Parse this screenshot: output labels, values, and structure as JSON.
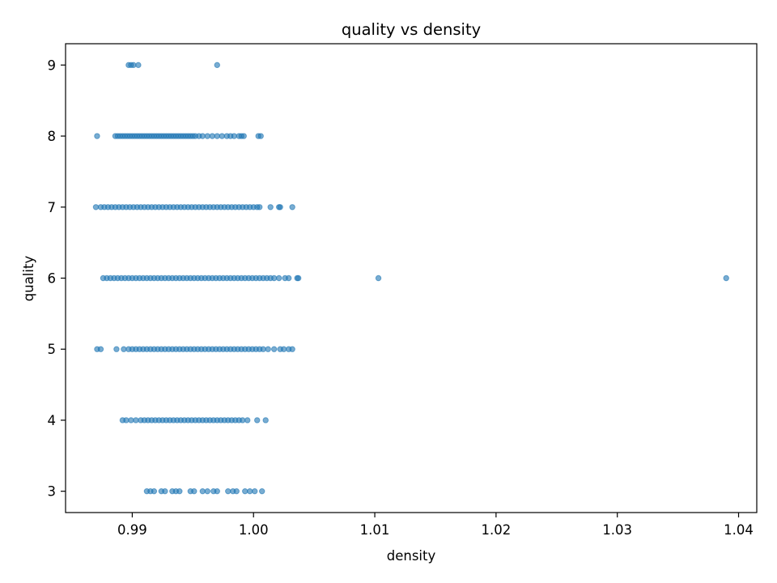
{
  "chart_data": {
    "type": "scatter",
    "title": "quality vs density",
    "xlabel": "density",
    "ylabel": "quality",
    "xlim": [
      0.9845,
      1.0415
    ],
    "ylim": [
      2.7,
      9.3
    ],
    "xticks": [
      0.99,
      1.0,
      1.01,
      1.02,
      1.03,
      1.04
    ],
    "xtick_labels": [
      "0.99",
      "1.00",
      "1.01",
      "1.02",
      "1.03",
      "1.04"
    ],
    "yticks": [
      3,
      4,
      5,
      6,
      7,
      8,
      9
    ],
    "ytick_labels": [
      "3",
      "4",
      "5",
      "6",
      "7",
      "8",
      "9"
    ],
    "grid": false,
    "legend": "none",
    "marker_color": "#1f77b4",
    "marker_alpha": 0.6,
    "series": [
      {
        "points": [
          [
            0.9897,
            9
          ],
          [
            0.9899,
            9
          ],
          [
            0.9901,
            9
          ],
          [
            0.9905,
            9
          ],
          [
            0.997,
            9
          ],
          [
            0.9871,
            8
          ],
          [
            0.9886,
            8
          ],
          [
            0.9888,
            8
          ],
          [
            0.989,
            8
          ],
          [
            0.9892,
            8
          ],
          [
            0.9894,
            8
          ],
          [
            0.9896,
            8
          ],
          [
            0.9898,
            8
          ],
          [
            0.99,
            8
          ],
          [
            0.9902,
            8
          ],
          [
            0.9904,
            8
          ],
          [
            0.9906,
            8
          ],
          [
            0.9908,
            8
          ],
          [
            0.991,
            8
          ],
          [
            0.9912,
            8
          ],
          [
            0.9914,
            8
          ],
          [
            0.9916,
            8
          ],
          [
            0.9918,
            8
          ],
          [
            0.992,
            8
          ],
          [
            0.9922,
            8
          ],
          [
            0.9924,
            8
          ],
          [
            0.9926,
            8
          ],
          [
            0.9928,
            8
          ],
          [
            0.993,
            8
          ],
          [
            0.9932,
            8
          ],
          [
            0.9934,
            8
          ],
          [
            0.9936,
            8
          ],
          [
            0.9938,
            8
          ],
          [
            0.994,
            8
          ],
          [
            0.9942,
            8
          ],
          [
            0.9944,
            8
          ],
          [
            0.9946,
            8
          ],
          [
            0.9948,
            8
          ],
          [
            0.995,
            8
          ],
          [
            0.9952,
            8
          ],
          [
            0.9955,
            8
          ],
          [
            0.9958,
            8
          ],
          [
            0.9962,
            8
          ],
          [
            0.9966,
            8
          ],
          [
            0.997,
            8
          ],
          [
            0.9974,
            8
          ],
          [
            0.9978,
            8
          ],
          [
            0.9981,
            8
          ],
          [
            0.9984,
            8
          ],
          [
            0.9988,
            8
          ],
          [
            0.999,
            8
          ],
          [
            0.9992,
            8
          ],
          [
            1.0004,
            8
          ],
          [
            1.0006,
            8
          ],
          [
            0.987,
            7
          ],
          [
            0.9874,
            7
          ],
          [
            0.9877,
            7
          ],
          [
            0.988,
            7
          ],
          [
            0.9883,
            7
          ],
          [
            0.9886,
            7
          ],
          [
            0.9889,
            7
          ],
          [
            0.9892,
            7
          ],
          [
            0.9895,
            7
          ],
          [
            0.9898,
            7
          ],
          [
            0.9901,
            7
          ],
          [
            0.9904,
            7
          ],
          [
            0.9907,
            7
          ],
          [
            0.991,
            7
          ],
          [
            0.9913,
            7
          ],
          [
            0.9916,
            7
          ],
          [
            0.9919,
            7
          ],
          [
            0.9922,
            7
          ],
          [
            0.9925,
            7
          ],
          [
            0.9928,
            7
          ],
          [
            0.9931,
            7
          ],
          [
            0.9934,
            7
          ],
          [
            0.9937,
            7
          ],
          [
            0.994,
            7
          ],
          [
            0.9943,
            7
          ],
          [
            0.9946,
            7
          ],
          [
            0.9949,
            7
          ],
          [
            0.9952,
            7
          ],
          [
            0.9955,
            7
          ],
          [
            0.9958,
            7
          ],
          [
            0.9961,
            7
          ],
          [
            0.9964,
            7
          ],
          [
            0.9967,
            7
          ],
          [
            0.997,
            7
          ],
          [
            0.9973,
            7
          ],
          [
            0.9976,
            7
          ],
          [
            0.9979,
            7
          ],
          [
            0.9982,
            7
          ],
          [
            0.9985,
            7
          ],
          [
            0.9988,
            7
          ],
          [
            0.9991,
            7
          ],
          [
            0.9994,
            7
          ],
          [
            0.9997,
            7
          ],
          [
            1.0,
            7
          ],
          [
            1.0003,
            7
          ],
          [
            1.0005,
            7
          ],
          [
            1.0014,
            7
          ],
          [
            1.0021,
            7
          ],
          [
            1.0022,
            7
          ],
          [
            1.0032,
            7
          ],
          [
            0.9876,
            6
          ],
          [
            0.9879,
            6
          ],
          [
            0.9882,
            6
          ],
          [
            0.9885,
            6
          ],
          [
            0.9888,
            6
          ],
          [
            0.9891,
            6
          ],
          [
            0.9894,
            6
          ],
          [
            0.9897,
            6
          ],
          [
            0.99,
            6
          ],
          [
            0.9903,
            6
          ],
          [
            0.9906,
            6
          ],
          [
            0.9909,
            6
          ],
          [
            0.9912,
            6
          ],
          [
            0.9915,
            6
          ],
          [
            0.9918,
            6
          ],
          [
            0.9921,
            6
          ],
          [
            0.9924,
            6
          ],
          [
            0.9927,
            6
          ],
          [
            0.993,
            6
          ],
          [
            0.9933,
            6
          ],
          [
            0.9936,
            6
          ],
          [
            0.9939,
            6
          ],
          [
            0.9942,
            6
          ],
          [
            0.9945,
            6
          ],
          [
            0.9948,
            6
          ],
          [
            0.9951,
            6
          ],
          [
            0.9954,
            6
          ],
          [
            0.9957,
            6
          ],
          [
            0.996,
            6
          ],
          [
            0.9963,
            6
          ],
          [
            0.9966,
            6
          ],
          [
            0.9969,
            6
          ],
          [
            0.9972,
            6
          ],
          [
            0.9975,
            6
          ],
          [
            0.9978,
            6
          ],
          [
            0.9981,
            6
          ],
          [
            0.9984,
            6
          ],
          [
            0.9987,
            6
          ],
          [
            0.999,
            6
          ],
          [
            0.9993,
            6
          ],
          [
            0.9996,
            6
          ],
          [
            0.9999,
            6
          ],
          [
            1.0002,
            6
          ],
          [
            1.0005,
            6
          ],
          [
            1.0008,
            6
          ],
          [
            1.0011,
            6
          ],
          [
            1.0014,
            6
          ],
          [
            1.0017,
            6
          ],
          [
            1.0021,
            6
          ],
          [
            1.0026,
            6
          ],
          [
            1.0029,
            6
          ],
          [
            1.0036,
            6
          ],
          [
            1.0037,
            6
          ],
          [
            1.0103,
            6
          ],
          [
            1.03898,
            6
          ],
          [
            0.9871,
            5
          ],
          [
            0.9874,
            5
          ],
          [
            0.9887,
            5
          ],
          [
            0.9893,
            5
          ],
          [
            0.9897,
            5
          ],
          [
            0.99,
            5
          ],
          [
            0.9903,
            5
          ],
          [
            0.9906,
            5
          ],
          [
            0.9909,
            5
          ],
          [
            0.9912,
            5
          ],
          [
            0.9915,
            5
          ],
          [
            0.9918,
            5
          ],
          [
            0.9921,
            5
          ],
          [
            0.9924,
            5
          ],
          [
            0.9927,
            5
          ],
          [
            0.993,
            5
          ],
          [
            0.9933,
            5
          ],
          [
            0.9936,
            5
          ],
          [
            0.9939,
            5
          ],
          [
            0.9942,
            5
          ],
          [
            0.9945,
            5
          ],
          [
            0.9948,
            5
          ],
          [
            0.9951,
            5
          ],
          [
            0.9954,
            5
          ],
          [
            0.9957,
            5
          ],
          [
            0.996,
            5
          ],
          [
            0.9963,
            5
          ],
          [
            0.9966,
            5
          ],
          [
            0.9969,
            5
          ],
          [
            0.9972,
            5
          ],
          [
            0.9975,
            5
          ],
          [
            0.9978,
            5
          ],
          [
            0.9981,
            5
          ],
          [
            0.9984,
            5
          ],
          [
            0.9987,
            5
          ],
          [
            0.999,
            5
          ],
          [
            0.9993,
            5
          ],
          [
            0.9996,
            5
          ],
          [
            0.9999,
            5
          ],
          [
            1.0002,
            5
          ],
          [
            1.0005,
            5
          ],
          [
            1.0008,
            5
          ],
          [
            1.0012,
            5
          ],
          [
            1.0017,
            5
          ],
          [
            1.0022,
            5
          ],
          [
            1.0025,
            5
          ],
          [
            1.0029,
            5
          ],
          [
            1.0032,
            5
          ],
          [
            0.9892,
            4
          ],
          [
            0.9895,
            4
          ],
          [
            0.9899,
            4
          ],
          [
            0.9903,
            4
          ],
          [
            0.9907,
            4
          ],
          [
            0.991,
            4
          ],
          [
            0.9913,
            4
          ],
          [
            0.9916,
            4
          ],
          [
            0.9919,
            4
          ],
          [
            0.9922,
            4
          ],
          [
            0.9925,
            4
          ],
          [
            0.9928,
            4
          ],
          [
            0.9931,
            4
          ],
          [
            0.9934,
            4
          ],
          [
            0.9937,
            4
          ],
          [
            0.994,
            4
          ],
          [
            0.9943,
            4
          ],
          [
            0.9946,
            4
          ],
          [
            0.9949,
            4
          ],
          [
            0.9952,
            4
          ],
          [
            0.9955,
            4
          ],
          [
            0.9958,
            4
          ],
          [
            0.9961,
            4
          ],
          [
            0.9964,
            4
          ],
          [
            0.9967,
            4
          ],
          [
            0.997,
            4
          ],
          [
            0.9973,
            4
          ],
          [
            0.9976,
            4
          ],
          [
            0.9979,
            4
          ],
          [
            0.9982,
            4
          ],
          [
            0.9985,
            4
          ],
          [
            0.9988,
            4
          ],
          [
            0.9991,
            4
          ],
          [
            0.9995,
            4
          ],
          [
            1.0003,
            4
          ],
          [
            1.001,
            4
          ],
          [
            0.9912,
            3
          ],
          [
            0.9915,
            3
          ],
          [
            0.9918,
            3
          ],
          [
            0.9924,
            3
          ],
          [
            0.9927,
            3
          ],
          [
            0.9933,
            3
          ],
          [
            0.9936,
            3
          ],
          [
            0.9939,
            3
          ],
          [
            0.9948,
            3
          ],
          [
            0.9951,
            3
          ],
          [
            0.9958,
            3
          ],
          [
            0.9962,
            3
          ],
          [
            0.9967,
            3
          ],
          [
            0.997,
            3
          ],
          [
            0.9979,
            3
          ],
          [
            0.9983,
            3
          ],
          [
            0.9986,
            3
          ],
          [
            0.9993,
            3
          ],
          [
            0.9997,
            3
          ],
          [
            1.0001,
            3
          ],
          [
            1.0007,
            3
          ]
        ]
      }
    ]
  }
}
